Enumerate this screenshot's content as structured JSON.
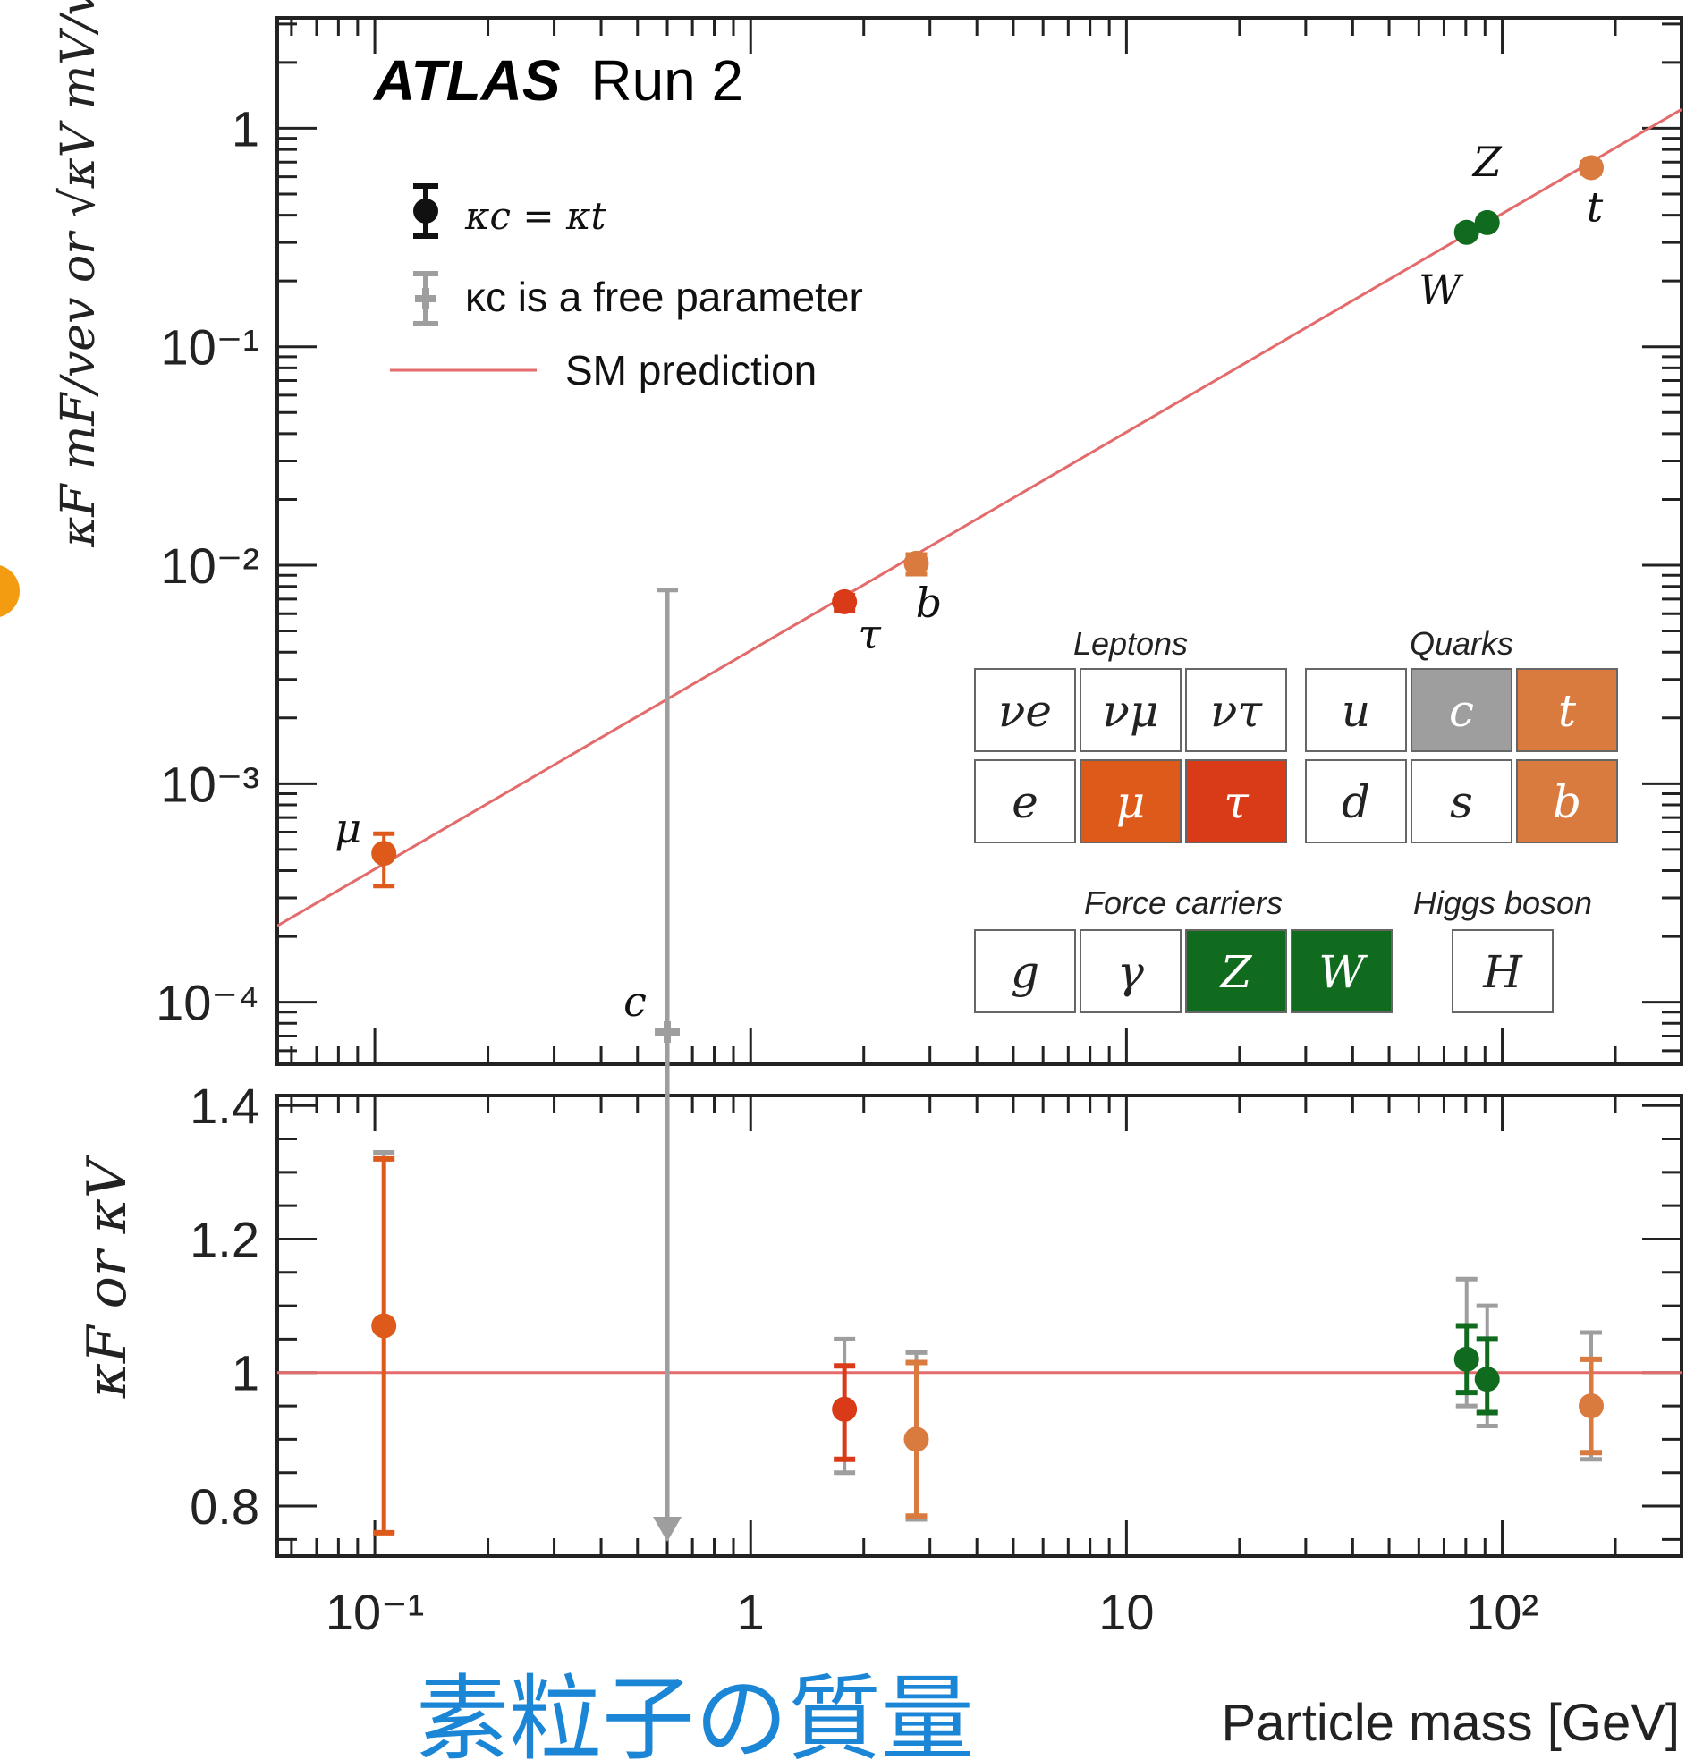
{
  "colors": {
    "sm_line": "#e36b6b",
    "muon": "#de5a1a",
    "tau": "#d93a17",
    "quark": "#d97a3f",
    "boson": "#116b1e",
    "gray": "#9e9e9e",
    "axis": "#222222",
    "jp_label": "#1c86d6"
  },
  "chart_data": {
    "type": "scatter",
    "experiment": "ATLAS",
    "experiment_suffix": "Run 2",
    "xlabel": "Particle mass [GeV]",
    "xlabel_jp": "素粒子の質量",
    "ylabel_top": "κF mF/vev or √κV mV/vev",
    "ylabel_bottom": "κF or κV",
    "xscale": "log",
    "xlim": [
      0.055,
      300
    ],
    "top_panel": {
      "yscale": "log",
      "ylim": [
        5.2e-05,
        3.2
      ],
      "ytick_labels": [
        "10⁻⁴",
        "10⁻³",
        "10⁻²",
        "10⁻¹",
        "1"
      ],
      "sm_prediction": {
        "description": "y = m / 246",
        "vev_gev": 246
      },
      "points": [
        {
          "label": "μ",
          "mass": 0.1057,
          "value": 0.00048,
          "err_low": 0.00034,
          "err_high": 0.00059,
          "group": "muon"
        },
        {
          "label": "τ",
          "mass": 1.777,
          "value": 0.0068,
          "err_low": 0.0062,
          "err_high": 0.0073,
          "group": "tau"
        },
        {
          "label": "b",
          "mass": 2.76,
          "value": 0.0102,
          "err_low": 0.0091,
          "err_high": 0.0112,
          "group": "quark"
        },
        {
          "label": "W",
          "mass": 80.4,
          "value": 0.334,
          "err_low": 0.322,
          "err_high": 0.346,
          "group": "boson"
        },
        {
          "label": "Z",
          "mass": 91.2,
          "value": 0.37,
          "err_low": 0.357,
          "err_high": 0.383,
          "group": "boson"
        },
        {
          "label": "t",
          "mass": 172.5,
          "value": 0.66,
          "err_low": 0.62,
          "err_high": 0.7,
          "group": "quark"
        }
      ],
      "charm_point": {
        "label": "c",
        "mass": 0.6,
        "value": 7.3e-05,
        "err_high": 0.0077,
        "group": "gray"
      }
    },
    "bottom_panel": {
      "ylim": [
        0.725,
        1.415
      ],
      "ytick_labels": [
        "0.8",
        "1",
        "1.2",
        "1.4"
      ],
      "sm_value": 1,
      "points": [
        {
          "mass": 0.1057,
          "value": 1.07,
          "err_low": 0.76,
          "err_high": 1.32,
          "alt_err_low": 0.76,
          "alt_err_high": 1.33,
          "group": "muon"
        },
        {
          "mass": 1.777,
          "value": 0.945,
          "err_low": 0.87,
          "err_high": 1.01,
          "alt_err_low": 0.85,
          "alt_err_high": 1.05,
          "group": "tau"
        },
        {
          "mass": 2.76,
          "value": 0.9,
          "err_low": 0.785,
          "err_high": 1.015,
          "alt_err_low": 0.78,
          "alt_err_high": 1.03,
          "group": "quark"
        },
        {
          "mass": 80.4,
          "value": 1.02,
          "err_low": 0.97,
          "err_high": 1.07,
          "alt_err_low": 0.95,
          "alt_err_high": 1.14,
          "group": "boson"
        },
        {
          "mass": 91.2,
          "value": 0.99,
          "err_low": 0.94,
          "err_high": 1.05,
          "alt_err_low": 0.92,
          "alt_err_high": 1.1,
          "group": "boson"
        },
        {
          "mass": 172.5,
          "value": 0.95,
          "err_low": 0.88,
          "err_high": 1.02,
          "alt_err_low": 0.87,
          "alt_err_high": 1.06,
          "group": "quark"
        }
      ],
      "charm_arrow": {
        "mass": 0.6
      }
    },
    "xtick_labels": [
      "10⁻¹",
      "1",
      "10",
      "10²"
    ],
    "legend": {
      "placement": "top-left",
      "entries": [
        {
          "symbol": "black-circle",
          "text": "κc = κt"
        },
        {
          "symbol": "gray-cross",
          "text": "κc is a free parameter"
        },
        {
          "symbol": "red-line",
          "text": "SM prediction"
        }
      ]
    },
    "particle_table": {
      "placement": "lower-right",
      "groups": [
        {
          "title": "Leptons",
          "cells": [
            {
              "symbol": "νe",
              "fill": "white"
            },
            {
              "symbol": "νμ",
              "fill": "white"
            },
            {
              "symbol": "ντ",
              "fill": "white"
            },
            {
              "symbol": "e",
              "fill": "white"
            },
            {
              "symbol": "μ",
              "fill": "muon"
            },
            {
              "symbol": "τ",
              "fill": "tau"
            }
          ]
        },
        {
          "title": "Quarks",
          "cells": [
            {
              "symbol": "u",
              "fill": "white"
            },
            {
              "symbol": "c",
              "fill": "gray"
            },
            {
              "symbol": "t",
              "fill": "quark"
            },
            {
              "symbol": "d",
              "fill": "white"
            },
            {
              "symbol": "s",
              "fill": "white"
            },
            {
              "symbol": "b",
              "fill": "quark"
            }
          ]
        },
        {
          "title": "Force carriers",
          "cells": [
            {
              "symbol": "g",
              "fill": "white"
            },
            {
              "symbol": "γ",
              "fill": "white"
            },
            {
              "symbol": "Z",
              "fill": "boson"
            },
            {
              "symbol": "W",
              "fill": "boson"
            }
          ]
        },
        {
          "title": "Higgs boson",
          "cells": [
            {
              "symbol": "H",
              "fill": "white"
            }
          ]
        }
      ]
    }
  }
}
